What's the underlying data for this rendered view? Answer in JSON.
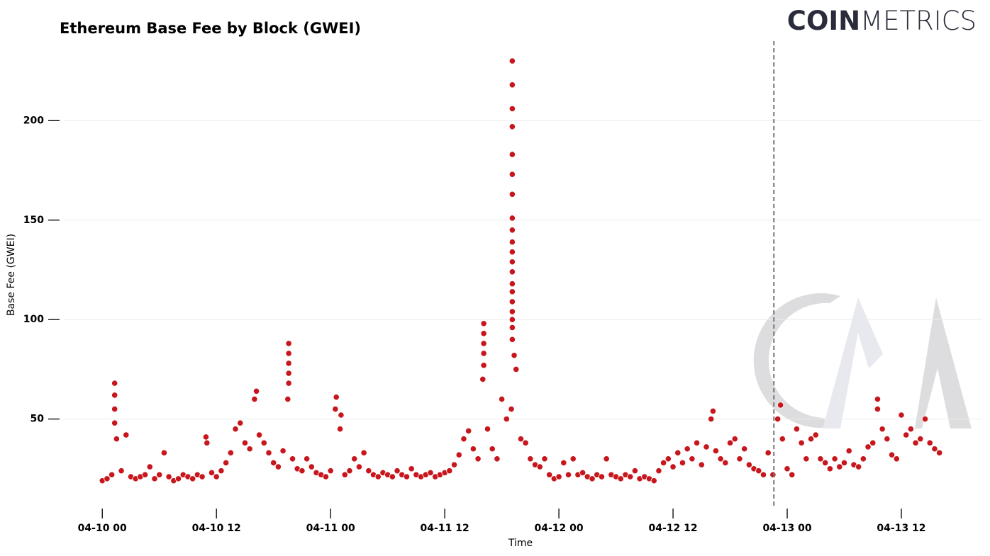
{
  "chart_data": {
    "type": "scatter",
    "title": "Ethereum Base Fee by Block (GWEI)",
    "logo_bold": "COIN",
    "logo_light": "METRICS",
    "xlabel": "Time",
    "ylabel": "Base Fee (GWEI)",
    "color": "#c8161d",
    "xlim": [
      -3,
      92.5
    ],
    "ylim": [
      5,
      240
    ],
    "xticks": [
      {
        "value": 0,
        "label": "04-10 00"
      },
      {
        "value": 12,
        "label": "04-10 12"
      },
      {
        "value": 24,
        "label": "04-11 00"
      },
      {
        "value": 36,
        "label": "04-11 12"
      },
      {
        "value": 48,
        "label": "04-12 00"
      },
      {
        "value": 60,
        "label": "04-12 12"
      },
      {
        "value": 72,
        "label": "04-13 00"
      },
      {
        "value": 84,
        "label": "04-13 12"
      }
    ],
    "yticks": [
      50,
      100,
      150,
      200
    ],
    "grid": true,
    "vline_x": 70.6,
    "x": [
      0,
      0.5,
      1,
      1.5,
      2,
      2.5,
      3,
      3.5,
      4,
      4.5,
      5,
      5.5,
      6,
      6.5,
      7,
      7.5,
      8,
      8.5,
      9,
      9.5,
      10,
      10.5,
      11,
      11.5,
      12,
      12.5,
      13,
      13.5,
      14,
      14.5,
      15,
      15.5,
      16,
      16.5,
      17,
      17.5,
      18,
      18.5,
      19,
      19.5,
      20,
      20.5,
      21,
      21.5,
      22,
      22.5,
      23,
      23.5,
      24,
      24.5,
      25,
      25.5,
      26,
      26.5,
      27,
      27.5,
      28,
      28.5,
      29,
      29.5,
      30,
      30.5,
      31,
      31.5,
      32,
      32.5,
      33,
      33.5,
      34,
      34.5,
      35,
      35.5,
      36,
      36.5,
      37,
      37.5,
      38,
      38.5,
      39,
      39.5,
      40,
      40.5,
      41,
      41.5,
      42,
      42.5,
      43,
      43.5,
      44,
      44.5,
      45,
      45.5,
      46,
      46.5,
      47,
      47.5,
      48,
      48.5,
      49,
      49.5,
      50,
      50.5,
      51,
      51.5,
      52,
      52.5,
      53,
      53.5,
      54,
      54.5,
      55,
      55.5,
      56,
      56.5,
      57,
      57.5,
      58,
      58.5,
      59,
      59.5,
      60,
      60.5,
      61,
      61.5,
      62,
      62.5,
      63,
      63.5,
      64,
      64.5,
      65,
      65.5,
      66,
      66.5,
      67,
      67.5,
      68,
      68.5,
      69,
      69.5,
      70,
      70.5,
      71,
      71.5,
      72,
      72.5,
      73,
      73.5,
      74,
      74.5,
      75,
      75.5,
      76,
      76.5,
      77,
      77.5,
      78,
      78.5,
      79,
      79.5,
      80,
      80.5,
      81,
      81.5,
      82,
      82.5,
      83,
      83.5,
      84,
      84.5,
      85,
      85.5,
      86,
      86.5,
      87,
      87.5,
      88,
      1.3,
      1.3,
      1.3,
      1.3,
      10.9,
      16.2,
      19.6,
      19.6,
      19.6,
      19.6,
      19.6,
      24.6,
      25.1,
      40.1,
      40.1,
      40.1,
      40.1,
      40.1,
      43.1,
      43.1,
      43.1,
      43.1,
      43.1,
      43.1,
      43.1,
      43.1,
      43.1,
      43.1,
      43.1,
      43.1,
      43.1,
      43.1,
      43.1,
      43.1,
      43.1,
      43.1,
      43.1,
      43.1,
      43.3,
      64.2,
      71.3,
      81.5
    ],
    "values": [
      19,
      20,
      22,
      40,
      24,
      42,
      21,
      20,
      21,
      22,
      26,
      20,
      22,
      33,
      21,
      19,
      20,
      22,
      21,
      20,
      22,
      21,
      38,
      23,
      21,
      24,
      28,
      33,
      45,
      48,
      38,
      35,
      60,
      42,
      38,
      33,
      28,
      26,
      34,
      60,
      30,
      25,
      24,
      30,
      26,
      23,
      22,
      21,
      24,
      55,
      45,
      22,
      24,
      30,
      26,
      33,
      24,
      22,
      21,
      23,
      22,
      21,
      24,
      22,
      21,
      25,
      22,
      21,
      22,
      23,
      21,
      22,
      23,
      24,
      27,
      32,
      40,
      44,
      35,
      30,
      70,
      45,
      35,
      30,
      60,
      50,
      55,
      75,
      40,
      38,
      30,
      27,
      26,
      30,
      22,
      20,
      21,
      28,
      22,
      30,
      22,
      23,
      21,
      20,
      22,
      21,
      30,
      22,
      21,
      20,
      22,
      21,
      24,
      20,
      21,
      20,
      19,
      24,
      28,
      30,
      26,
      33,
      28,
      35,
      30,
      38,
      27,
      36,
      50,
      34,
      30,
      28,
      38,
      40,
      30,
      35,
      27,
      25,
      24,
      22,
      33,
      22,
      50,
      40,
      25,
      22,
      45,
      38,
      30,
      40,
      42,
      30,
      28,
      25,
      30,
      26,
      28,
      34,
      27,
      26,
      30,
      36,
      38,
      55,
      45,
      40,
      32,
      30,
      52,
      42,
      45,
      38,
      40,
      50,
      38,
      35,
      33,
      68,
      62,
      55,
      48,
      41,
      64,
      88,
      83,
      78,
      73,
      68,
      61,
      52,
      98,
      93,
      88,
      83,
      77,
      230,
      218,
      206,
      197,
      183,
      173,
      163,
      151,
      145,
      139,
      134,
      129,
      124,
      118,
      114,
      109,
      104,
      100,
      96,
      90,
      82,
      54,
      57,
      60
    ]
  }
}
